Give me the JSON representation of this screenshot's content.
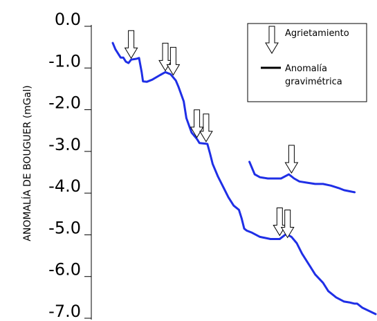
{
  "chart_data": {
    "type": "line",
    "ylabel": "ANOMALÍA DE BOUGUER (mGal)",
    "yticks": [
      "0.0",
      "-1.0",
      "-2.0",
      "-3.0",
      "-4.0",
      "-5.0",
      "-6.0",
      "-7.0"
    ],
    "ylim": [
      -7.0,
      0.0
    ],
    "grid": false,
    "legend": {
      "placement": "top-right",
      "entries": [
        {
          "symbol": "arrow-down",
          "label": "Agrietamiento"
        },
        {
          "symbol": "line",
          "label_lines": [
            "Anomalía",
            "gravimétrica"
          ]
        }
      ]
    },
    "series_color": "#1f2fe6",
    "series": [
      {
        "points": [
          [
            0.0,
            -0.4
          ],
          [
            0.01,
            -0.55
          ],
          [
            0.03,
            -0.75
          ],
          [
            0.04,
            -0.75
          ],
          [
            0.05,
            -0.85
          ],
          [
            0.06,
            -0.88
          ],
          [
            0.07,
            -0.8
          ],
          [
            0.09,
            -0.78
          ],
          [
            0.1,
            -0.76
          ],
          [
            0.11,
            -1.1
          ],
          [
            0.115,
            -1.32
          ],
          [
            0.13,
            -1.33
          ],
          [
            0.15,
            -1.28
          ],
          [
            0.18,
            -1.17
          ],
          [
            0.2,
            -1.1
          ],
          [
            0.22,
            -1.15
          ],
          [
            0.24,
            -1.3
          ],
          [
            0.25,
            -1.45
          ],
          [
            0.27,
            -1.8
          ],
          [
            0.28,
            -2.2
          ],
          [
            0.3,
            -2.55
          ],
          [
            0.32,
            -2.7
          ],
          [
            0.33,
            -2.8
          ],
          [
            0.36,
            -2.82
          ],
          [
            0.37,
            -3.05
          ],
          [
            0.38,
            -3.3
          ],
          [
            0.4,
            -3.6
          ],
          [
            0.42,
            -3.85
          ],
          [
            0.44,
            -4.1
          ],
          [
            0.46,
            -4.3
          ],
          [
            0.48,
            -4.4
          ],
          [
            0.49,
            -4.6
          ],
          [
            0.5,
            -4.85
          ],
          [
            0.51,
            -4.9
          ],
          [
            0.53,
            -4.95
          ],
          [
            0.56,
            -5.05
          ],
          [
            0.6,
            -5.1
          ],
          [
            0.635,
            -5.1
          ],
          [
            0.66,
            -4.98
          ],
          [
            0.68,
            -5.05
          ],
          [
            0.7,
            -5.2
          ],
          [
            0.72,
            -5.45
          ],
          [
            0.75,
            -5.75
          ],
          [
            0.77,
            -5.95
          ],
          [
            0.8,
            -6.15
          ],
          [
            0.82,
            -6.35
          ],
          [
            0.85,
            -6.5
          ],
          [
            0.88,
            -6.6
          ],
          [
            0.9,
            -6.62
          ],
          [
            0.92,
            -6.65
          ],
          [
            0.93,
            -6.65
          ],
          [
            0.95,
            -6.75
          ],
          [
            1.0,
            -6.9
          ]
        ]
      },
      {
        "points": [
          [
            0.52,
            -3.25
          ],
          [
            0.54,
            -3.55
          ],
          [
            0.56,
            -3.62
          ],
          [
            0.59,
            -3.65
          ],
          [
            0.62,
            -3.65
          ],
          [
            0.64,
            -3.65
          ],
          [
            0.67,
            -3.55
          ],
          [
            0.69,
            -3.65
          ],
          [
            0.71,
            -3.72
          ],
          [
            0.74,
            -3.75
          ],
          [
            0.77,
            -3.78
          ],
          [
            0.8,
            -3.78
          ],
          [
            0.83,
            -3.82
          ],
          [
            0.86,
            -3.88
          ],
          [
            0.88,
            -3.93
          ],
          [
            0.92,
            -3.98
          ]
        ]
      }
    ],
    "agrietamiento_markers": [
      {
        "x": 0.07,
        "y": -0.8
      },
      {
        "x": 0.2,
        "y": -1.1
      },
      {
        "x": 0.23,
        "y": -1.2
      },
      {
        "x": 0.32,
        "y": -2.7
      },
      {
        "x": 0.355,
        "y": -2.8
      },
      {
        "x": 0.68,
        "y": -3.55
      },
      {
        "x": 0.635,
        "y": -5.05
      },
      {
        "x": 0.665,
        "y": -5.1
      }
    ]
  }
}
